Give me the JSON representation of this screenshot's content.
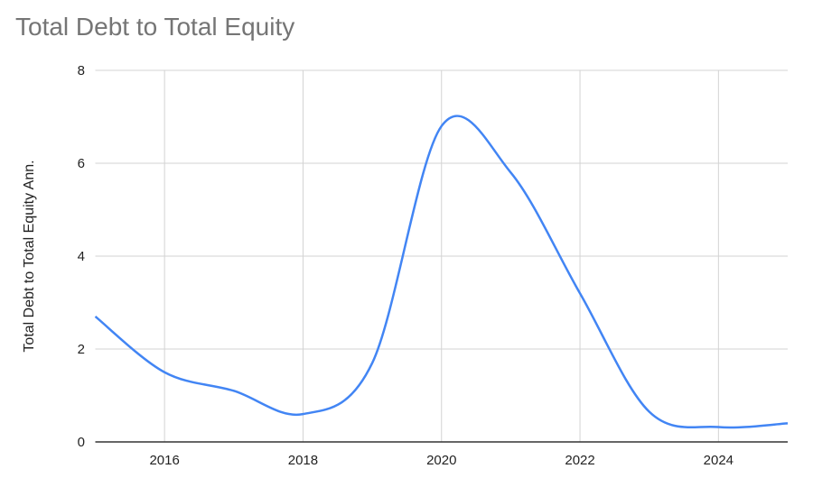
{
  "chart_data": {
    "type": "line",
    "title": "Total Debt to Total Equity",
    "xlabel": "",
    "ylabel": "Total Debt to Total Equity Ann.",
    "xlim": [
      2015,
      2025
    ],
    "ylim": [
      0,
      8
    ],
    "x_ticks": [
      "2016",
      "2018",
      "2020",
      "2022",
      "2024"
    ],
    "y_ticks": [
      "0",
      "2",
      "4",
      "6",
      "8"
    ],
    "grid": true,
    "smooth": true,
    "color": "#4285f4",
    "x": [
      2015,
      2016,
      2017,
      2018,
      2019,
      2020,
      2021,
      2022,
      2023,
      2024,
      2025
    ],
    "values": [
      2.7,
      1.5,
      1.1,
      0.6,
      1.7,
      6.8,
      5.8,
      3.2,
      0.65,
      0.32,
      0.4
    ]
  }
}
